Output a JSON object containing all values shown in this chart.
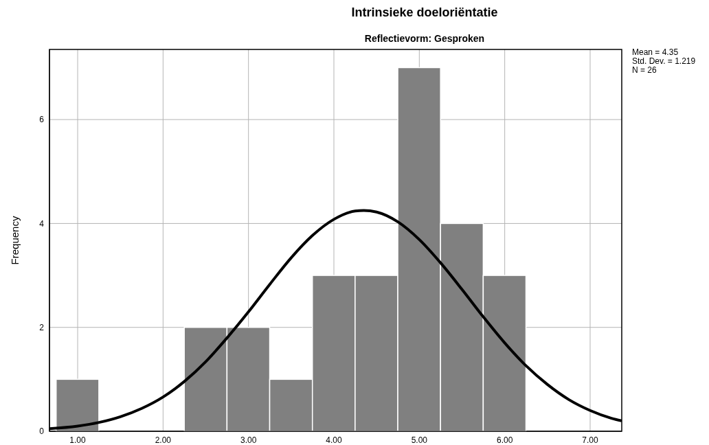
{
  "chart_data": {
    "type": "histogram",
    "title": "Intrinsieke doeloriëntatie",
    "subtitle": "Reflectievorm: Gesproken",
    "ylabel": "Frequency",
    "series": [
      {
        "color": "#808080",
        "bins": [
          0.75,
          1.25,
          1.75,
          2.25,
          2.75,
          3.25,
          3.75,
          4.25,
          4.75,
          5.25,
          5.75,
          6.25
        ],
        "values": [
          1,
          0,
          0,
          2,
          2,
          1,
          3,
          3,
          7,
          4,
          3
        ]
      },
      {
        "type": "line",
        "color": "#000000",
        "x": [
          0.67,
          1.0,
          1.25,
          1.5,
          1.75,
          2.0,
          2.25,
          2.5,
          2.75,
          3.0,
          3.25,
          3.5,
          3.75,
          4.0,
          4.25,
          4.35,
          4.5,
          4.75,
          5.0,
          5.25,
          5.5,
          5.75,
          6.0,
          6.25,
          6.5,
          6.75,
          7.0,
          7.25,
          7.37
        ],
        "values": [
          0.05,
          0.1,
          0.17,
          0.28,
          0.44,
          0.66,
          0.96,
          1.34,
          1.8,
          2.3,
          2.83,
          3.34,
          3.77,
          4.08,
          4.24,
          4.25,
          4.22,
          4.03,
          3.69,
          3.24,
          2.73,
          2.2,
          1.7,
          1.26,
          0.9,
          0.61,
          0.4,
          0.25,
          0.2
        ]
      }
    ],
    "xlim": [
      0.67,
      7.37
    ],
    "xticks": [
      {
        "value": 1,
        "label": "1.00"
      },
      {
        "value": 2,
        "label": "2.00"
      },
      {
        "value": 3,
        "label": "3.00"
      },
      {
        "value": 4,
        "label": "4.00"
      },
      {
        "value": 5,
        "label": "5.00"
      },
      {
        "value": 6,
        "label": "6.00"
      },
      {
        "value": 7,
        "label": "7.00"
      }
    ],
    "ylim": [
      0,
      7.35
    ],
    "yticks": [
      0,
      2,
      4,
      6
    ],
    "grid": true,
    "marker": "none",
    "line_style": "solid",
    "annotations": [
      "Mean = 4.35",
      "Std. Dev. = 1.219",
      "N = 26"
    ]
  }
}
